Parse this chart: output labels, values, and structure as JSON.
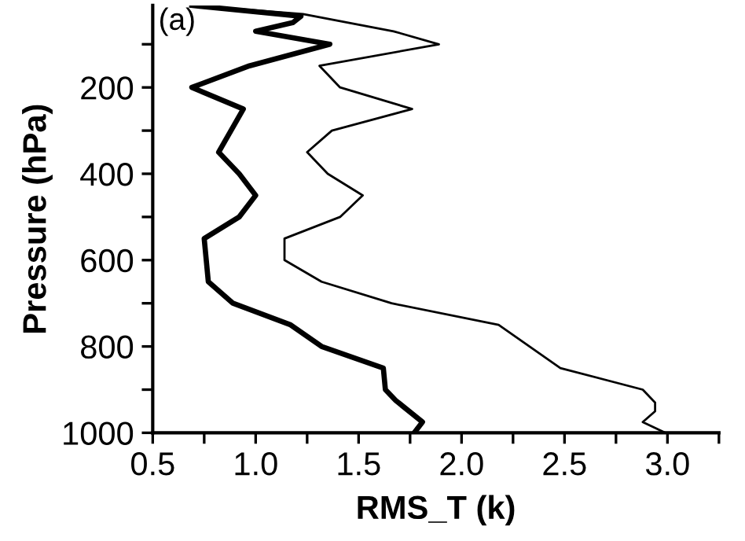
{
  "chart_data": {
    "type": "line",
    "xlabel": "RMS_T (k)",
    "ylabel": "Pressure (hPa)",
    "annotations": [
      "(a)"
    ],
    "xlim": [
      0.5,
      3.25
    ],
    "ylim": [
      1000,
      10
    ],
    "xticks": [
      0.5,
      {
        "value": 0.75,
        "label": null
      },
      {
        "value": 1.0,
        "label": "1.0"
      },
      {
        "value": 1.25,
        "label": null
      },
      1.5,
      {
        "value": 1.75,
        "label": null
      },
      {
        "value": 2.0,
        "label": "2.0"
      },
      {
        "value": 2.25,
        "label": null
      },
      2.5,
      {
        "value": 2.75,
        "label": null
      },
      {
        "value": 3.0,
        "label": "3.0"
      },
      {
        "value": 3.25,
        "label": null
      }
    ],
    "yticks": [
      {
        "value": 100,
        "label": null
      },
      200,
      {
        "value": 300,
        "label": null
      },
      400,
      {
        "value": 500,
        "label": null
      },
      600,
      {
        "value": 700,
        "label": null
      },
      800,
      {
        "value": 900,
        "label": null
      },
      1000
    ],
    "grid": false,
    "marker": "none",
    "line_style": "solid",
    "series": [
      {
        "color": "#000000",
        "x": [
          0.69,
          1.22,
          1.18,
          1.0,
          1.36,
          0.97,
          0.69,
          0.94,
          0.88,
          0.82,
          0.92,
          1.0,
          0.92,
          0.75,
          0.76,
          0.77,
          0.89,
          1.17,
          1.32,
          1.62,
          1.63,
          1.68,
          1.81,
          1.77
        ],
        "values": [
          10,
          35,
          50,
          70,
          100,
          150,
          200,
          250,
          300,
          350,
          400,
          450,
          500,
          550,
          600,
          650,
          700,
          750,
          800,
          850,
          900,
          925,
          975,
          1000
        ]
      },
      {
        "color": "#000000",
        "x": [
          0.69,
          1.23,
          1.67,
          1.89,
          1.31,
          1.41,
          1.76,
          1.37,
          1.25,
          1.35,
          1.52,
          1.41,
          1.14,
          1.14,
          1.32,
          1.66,
          2.18,
          2.33,
          2.48,
          2.88,
          2.94,
          2.94,
          2.88,
          2.99
        ],
        "values": [
          10,
          30,
          70,
          100,
          150,
          200,
          250,
          300,
          350,
          400,
          450,
          500,
          550,
          600,
          650,
          700,
          750,
          800,
          850,
          900,
          930,
          950,
          975,
          1000
        ]
      }
    ]
  }
}
